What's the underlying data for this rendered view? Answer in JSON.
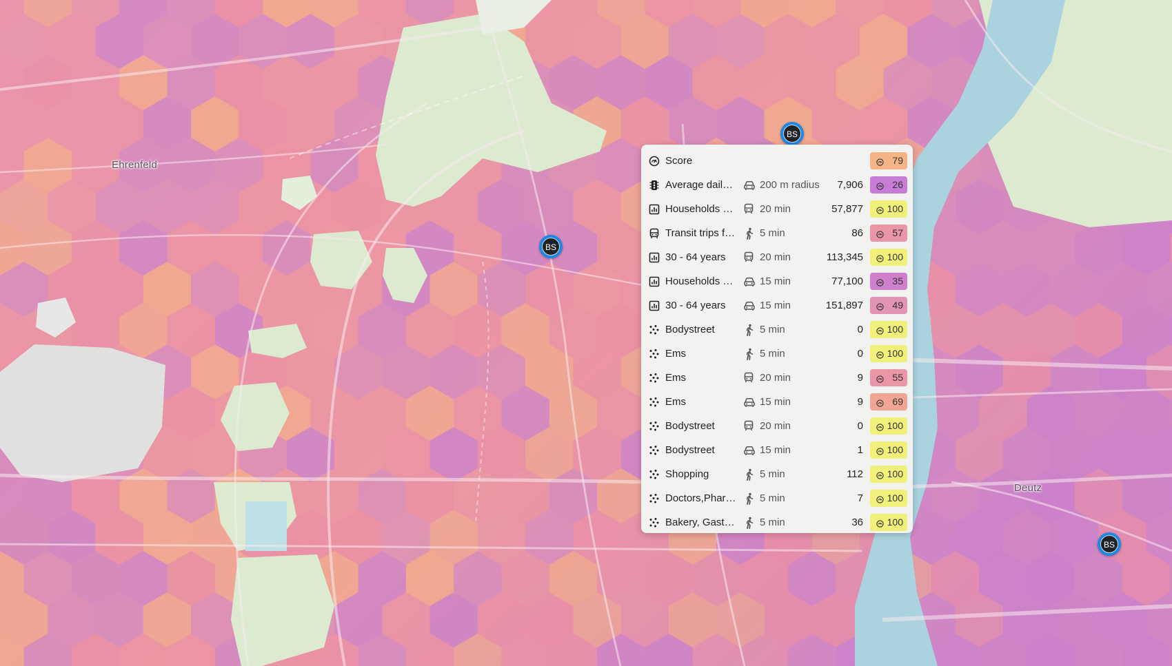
{
  "map": {
    "place_labels": [
      "Ehrenfeld",
      "Deutz"
    ],
    "marker_label": "BS",
    "colors": {
      "water": "#aad3df",
      "park": "#dcead0",
      "marker_ring": "#1e88e5",
      "marker_fill": "#1f2227",
      "hex_low": "#c77cd1",
      "hex_mid": "#e98ba6",
      "hex_high": "#f3ad86"
    }
  },
  "popup": {
    "header": {
      "icon": "gauge-icon",
      "label": "Score",
      "score": "79",
      "score_color": "#f5b486"
    },
    "rows": [
      {
        "icon": "traffic-light-icon",
        "label": "Average daily traffic",
        "mode_icon": "car-icon",
        "mode": "200 m radius",
        "value": "7,906",
        "score": "26",
        "score_color": "#c77dd6"
      },
      {
        "icon": "chart-icon",
        "label": "Households with children",
        "mode_icon": "transit-icon",
        "mode": "20 min",
        "value": "57,877",
        "score": "100",
        "score_color": "#f0f07a"
      },
      {
        "icon": "transit-icon",
        "label": "Transit trips from stops",
        "mode_icon": "walk-icon",
        "mode": "5 min",
        "value": "86",
        "score": "57",
        "score_color": "#e996a6"
      },
      {
        "icon": "chart-icon",
        "label": "30 - 64 years",
        "mode_icon": "transit-icon",
        "mode": "20 min",
        "value": "113,345",
        "score": "100",
        "score_color": "#f0f07a"
      },
      {
        "icon": "chart-icon",
        "label": "Households with children",
        "mode_icon": "car-icon",
        "mode": "15 min",
        "value": "77,100",
        "score": "35",
        "score_color": "#cf7fcb"
      },
      {
        "icon": "chart-icon",
        "label": "30 - 64 years",
        "mode_icon": "car-icon",
        "mode": "15 min",
        "value": "151,897",
        "score": "49",
        "score_color": "#e393b3"
      },
      {
        "icon": "scatter-icon",
        "label": "Bodystreet",
        "mode_icon": "walk-icon",
        "mode": "5 min",
        "value": "0",
        "score": "100",
        "score_color": "#f0f07a"
      },
      {
        "icon": "scatter-icon",
        "label": "Ems",
        "mode_icon": "walk-icon",
        "mode": "5 min",
        "value": "0",
        "score": "100",
        "score_color": "#f0f07a"
      },
      {
        "icon": "scatter-icon",
        "label": "Ems",
        "mode_icon": "transit-icon",
        "mode": "20 min",
        "value": "9",
        "score": "55",
        "score_color": "#e996a6"
      },
      {
        "icon": "scatter-icon",
        "label": "Ems",
        "mode_icon": "car-icon",
        "mode": "15 min",
        "value": "9",
        "score": "69",
        "score_color": "#f1a595"
      },
      {
        "icon": "scatter-icon",
        "label": "Bodystreet",
        "mode_icon": "transit-icon",
        "mode": "20 min",
        "value": "0",
        "score": "100",
        "score_color": "#f0f07a"
      },
      {
        "icon": "scatter-icon",
        "label": "Bodystreet",
        "mode_icon": "car-icon",
        "mode": "15 min",
        "value": "1",
        "score": "100",
        "score_color": "#f0f07a"
      },
      {
        "icon": "scatter-icon",
        "label": "Shopping",
        "mode_icon": "walk-icon",
        "mode": "5 min",
        "value": "112",
        "score": "100",
        "score_color": "#f0f07a"
      },
      {
        "icon": "scatter-icon",
        "label": "Doctors,Pharmacies",
        "mode_icon": "walk-icon",
        "mode": "5 min",
        "value": "7",
        "score": "100",
        "score_color": "#f0f07a"
      },
      {
        "icon": "scatter-icon",
        "label": "Bakery, Gastronomy",
        "mode_icon": "walk-icon",
        "mode": "5 min",
        "value": "36",
        "score": "100",
        "score_color": "#f0f07a"
      }
    ]
  }
}
